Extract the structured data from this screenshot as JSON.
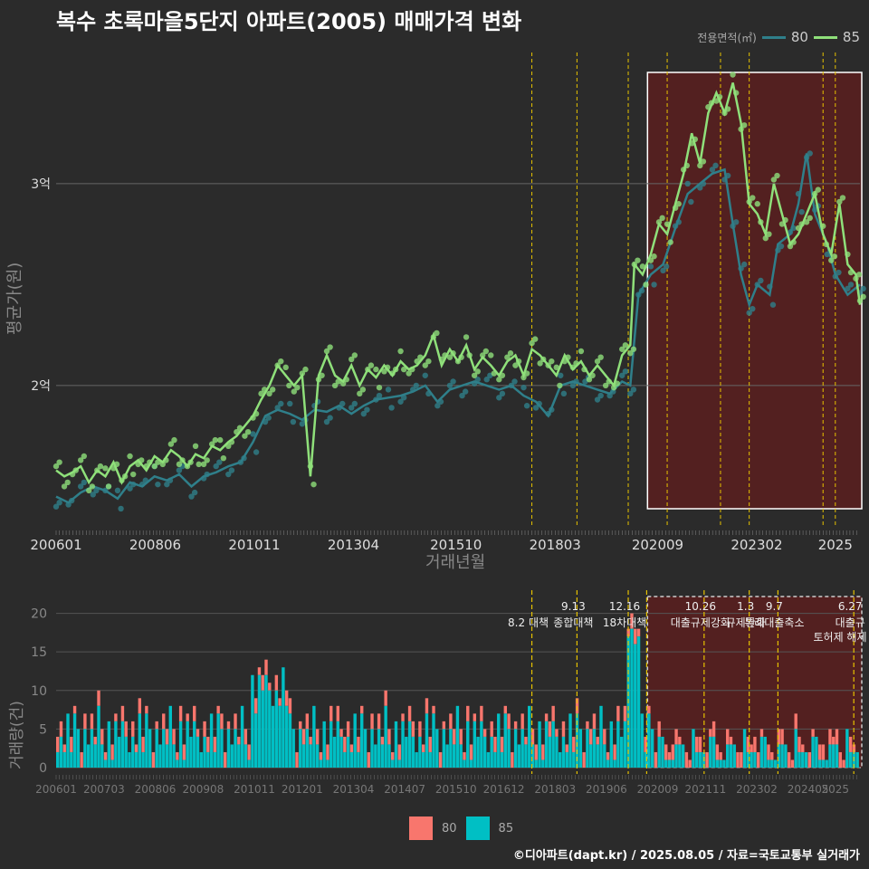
{
  "title": "복수 초록마을5단지 아파트(2005) 매매가격 변화",
  "legend": {
    "title": "전용면적(㎡)",
    "items": [
      {
        "label": "80",
        "color": "#2f7f8a"
      },
      {
        "label": "85",
        "color": "#8fe07a"
      }
    ]
  },
  "bar_legend": {
    "items": [
      {
        "label": "80",
        "color": "#f8766d"
      },
      {
        "label": "85",
        "color": "#00bfc4"
      }
    ]
  },
  "footer": "©디아파트(dapt.kr) / 2025.08.05 / 자료=국토교통부 실거래가",
  "colors": {
    "background": "#2b2b2b",
    "line80": "#2f7f8a",
    "line85": "#8fe07a",
    "bar80": "#f8766d",
    "bar85": "#00bfc4",
    "highlight": "#5a1e1e",
    "policy": "#e6c200"
  },
  "chart_data": [
    {
      "type": "line",
      "ylabel": "평균가(원)",
      "xlabel": "거래년월",
      "yticks": [
        {
          "value": 2.0,
          "label": "2억"
        },
        {
          "value": 3.0,
          "label": "3억"
        }
      ],
      "xticks": [
        "200601",
        "200806",
        "201011",
        "201304",
        "201510",
        "201803",
        "202009",
        "202302",
        "2025"
      ],
      "highlight": {
        "from": 2020.42,
        "to": 2025.6
      },
      "policy_lines": [
        2017.6,
        2018.7,
        2019.95,
        2020.9,
        2022.2,
        2022.9,
        2024.7,
        2025.0
      ],
      "series": [
        {
          "name": "80",
          "points": [
            [
              2006.0,
              1.45
            ],
            [
              2006.3,
              1.42
            ],
            [
              2006.6,
              1.47
            ],
            [
              2006.9,
              1.5
            ],
            [
              2007.2,
              1.48
            ],
            [
              2007.5,
              1.44
            ],
            [
              2007.8,
              1.52
            ],
            [
              2008.1,
              1.5
            ],
            [
              2008.4,
              1.55
            ],
            [
              2008.7,
              1.53
            ],
            [
              2009.0,
              1.56
            ],
            [
              2009.3,
              1.5
            ],
            [
              2009.6,
              1.55
            ],
            [
              2009.9,
              1.57
            ],
            [
              2010.2,
              1.6
            ],
            [
              2010.5,
              1.62
            ],
            [
              2010.8,
              1.72
            ],
            [
              2011.1,
              1.85
            ],
            [
              2011.4,
              1.88
            ],
            [
              2011.7,
              1.86
            ],
            [
              2012.0,
              1.83
            ],
            [
              2012.3,
              1.88
            ],
            [
              2012.6,
              1.87
            ],
            [
              2012.9,
              1.9
            ],
            [
              2013.2,
              1.86
            ],
            [
              2013.5,
              1.9
            ],
            [
              2013.8,
              1.93
            ],
            [
              2014.1,
              1.94
            ],
            [
              2014.4,
              1.95
            ],
            [
              2014.7,
              1.97
            ],
            [
              2015.0,
              2.0
            ],
            [
              2015.3,
              1.92
            ],
            [
              2015.6,
              1.98
            ],
            [
              2015.9,
              2.0
            ],
            [
              2016.2,
              2.02
            ],
            [
              2016.5,
              2.0
            ],
            [
              2016.8,
              1.98
            ],
            [
              2017.1,
              2.0
            ],
            [
              2017.4,
              1.95
            ],
            [
              2017.7,
              1.92
            ],
            [
              2018.0,
              1.85
            ],
            [
              2018.3,
              2.0
            ],
            [
              2018.6,
              2.02
            ],
            [
              2018.9,
              2.0
            ],
            [
              2019.2,
              1.98
            ],
            [
              2019.5,
              1.96
            ],
            [
              2019.8,
              2.02
            ],
            [
              2020.0,
              2.0
            ],
            [
              2020.2,
              2.45
            ],
            [
              2020.5,
              2.55
            ],
            [
              2020.8,
              2.6
            ],
            [
              2021.1,
              2.78
            ],
            [
              2021.4,
              2.95
            ],
            [
              2021.7,
              3.0
            ],
            [
              2022.0,
              3.05
            ],
            [
              2022.3,
              3.07
            ],
            [
              2022.5,
              2.8
            ],
            [
              2022.7,
              2.55
            ],
            [
              2022.9,
              2.4
            ],
            [
              2023.1,
              2.5
            ],
            [
              2023.4,
              2.45
            ],
            [
              2023.6,
              2.7
            ],
            [
              2023.9,
              2.75
            ],
            [
              2024.1,
              2.9
            ],
            [
              2024.3,
              3.15
            ],
            [
              2024.5,
              2.85
            ],
            [
              2024.8,
              2.7
            ],
            [
              2025.0,
              2.55
            ],
            [
              2025.3,
              2.45
            ],
            [
              2025.6,
              2.5
            ]
          ]
        },
        {
          "name": "85",
          "points": [
            [
              2006.0,
              1.58
            ],
            [
              2006.2,
              1.55
            ],
            [
              2006.4,
              1.57
            ],
            [
              2006.6,
              1.6
            ],
            [
              2006.8,
              1.52
            ],
            [
              2007.0,
              1.58
            ],
            [
              2007.2,
              1.55
            ],
            [
              2007.4,
              1.62
            ],
            [
              2007.6,
              1.52
            ],
            [
              2007.8,
              1.6
            ],
            [
              2008.0,
              1.63
            ],
            [
              2008.2,
              1.58
            ],
            [
              2008.4,
              1.65
            ],
            [
              2008.6,
              1.62
            ],
            [
              2008.8,
              1.68
            ],
            [
              2009.0,
              1.65
            ],
            [
              2009.2,
              1.6
            ],
            [
              2009.4,
              1.66
            ],
            [
              2009.6,
              1.64
            ],
            [
              2009.8,
              1.7
            ],
            [
              2010.0,
              1.68
            ],
            [
              2010.2,
              1.72
            ],
            [
              2010.4,
              1.75
            ],
            [
              2010.6,
              1.8
            ],
            [
              2010.8,
              1.85
            ],
            [
              2011.0,
              1.93
            ],
            [
              2011.2,
              2.0
            ],
            [
              2011.4,
              2.1
            ],
            [
              2011.6,
              2.05
            ],
            [
              2011.8,
              2.0
            ],
            [
              2012.0,
              2.05
            ],
            [
              2012.2,
              1.55
            ],
            [
              2012.4,
              2.05
            ],
            [
              2012.6,
              2.15
            ],
            [
              2012.8,
              2.05
            ],
            [
              2013.0,
              2.02
            ],
            [
              2013.2,
              2.1
            ],
            [
              2013.4,
              2.0
            ],
            [
              2013.6,
              2.08
            ],
            [
              2013.8,
              2.04
            ],
            [
              2014.0,
              2.1
            ],
            [
              2014.2,
              2.05
            ],
            [
              2014.4,
              2.12
            ],
            [
              2014.6,
              2.08
            ],
            [
              2014.8,
              2.1
            ],
            [
              2015.0,
              2.15
            ],
            [
              2015.2,
              2.25
            ],
            [
              2015.4,
              2.1
            ],
            [
              2015.6,
              2.18
            ],
            [
              2015.8,
              2.12
            ],
            [
              2016.0,
              2.2
            ],
            [
              2016.2,
              2.08
            ],
            [
              2016.4,
              2.14
            ],
            [
              2016.6,
              2.1
            ],
            [
              2016.8,
              2.05
            ],
            [
              2017.0,
              2.12
            ],
            [
              2017.2,
              2.15
            ],
            [
              2017.4,
              2.05
            ],
            [
              2017.6,
              2.18
            ],
            [
              2017.8,
              2.15
            ],
            [
              2018.0,
              2.1
            ],
            [
              2018.2,
              2.05
            ],
            [
              2018.4,
              2.15
            ],
            [
              2018.6,
              2.08
            ],
            [
              2018.8,
              2.12
            ],
            [
              2019.0,
              2.05
            ],
            [
              2019.2,
              2.1
            ],
            [
              2019.4,
              2.05
            ],
            [
              2019.6,
              2.0
            ],
            [
              2019.8,
              2.15
            ],
            [
              2020.0,
              2.2
            ],
            [
              2020.1,
              2.6
            ],
            [
              2020.3,
              2.55
            ],
            [
              2020.5,
              2.65
            ],
            [
              2020.7,
              2.8
            ],
            [
              2020.9,
              2.75
            ],
            [
              2021.1,
              2.9
            ],
            [
              2021.3,
              3.05
            ],
            [
              2021.5,
              3.25
            ],
            [
              2021.7,
              3.1
            ],
            [
              2021.9,
              3.35
            ],
            [
              2022.1,
              3.45
            ],
            [
              2022.3,
              3.35
            ],
            [
              2022.5,
              3.5
            ],
            [
              2022.7,
              3.3
            ],
            [
              2022.9,
              2.9
            ],
            [
              2023.1,
              2.85
            ],
            [
              2023.3,
              2.75
            ],
            [
              2023.5,
              3.0
            ],
            [
              2023.7,
              2.85
            ],
            [
              2023.9,
              2.7
            ],
            [
              2024.1,
              2.75
            ],
            [
              2024.3,
              2.85
            ],
            [
              2024.5,
              2.95
            ],
            [
              2024.7,
              2.75
            ],
            [
              2024.9,
              2.65
            ],
            [
              2025.1,
              2.9
            ],
            [
              2025.3,
              2.6
            ],
            [
              2025.5,
              2.55
            ],
            [
              2025.6,
              2.4
            ]
          ]
        }
      ]
    },
    {
      "type": "bar",
      "ylabel": "거래량(건)",
      "yticks": [
        0,
        5,
        10,
        15,
        20
      ],
      "ylim": [
        0,
        23
      ],
      "xticks": [
        "200601",
        "200703",
        "200806",
        "200908",
        "201011",
        "201201",
        "201304",
        "201407",
        "201510",
        "201612",
        "201803",
        "201906",
        "202009",
        "202111",
        "202302",
        "202405",
        "2025"
      ],
      "highlight": {
        "from": 2020.42,
        "to": 2025.6
      },
      "policy_annotations": [
        {
          "x": 2017.6,
          "date": "",
          "text": "8.2 대책"
        },
        {
          "x": 2018.7,
          "date": "9.13",
          "text": "종합대책"
        },
        {
          "x": 2019.95,
          "date": "12.16",
          "text": "18차대책"
        },
        {
          "x": 2020.4,
          "date": "",
          "text": ""
        },
        {
          "x": 2021.8,
          "date": "10.26",
          "text": "대출규제강화"
        },
        {
          "x": 2022.9,
          "date": "1.3",
          "text": "규제완화"
        },
        {
          "x": 2023.6,
          "date": "9.7",
          "text": "특례대출축소"
        },
        {
          "x": 2025.45,
          "date": "6.27",
          "text": "대출규"
        }
      ],
      "extra_notes": [
        "토허제 해제"
      ]
    }
  ]
}
